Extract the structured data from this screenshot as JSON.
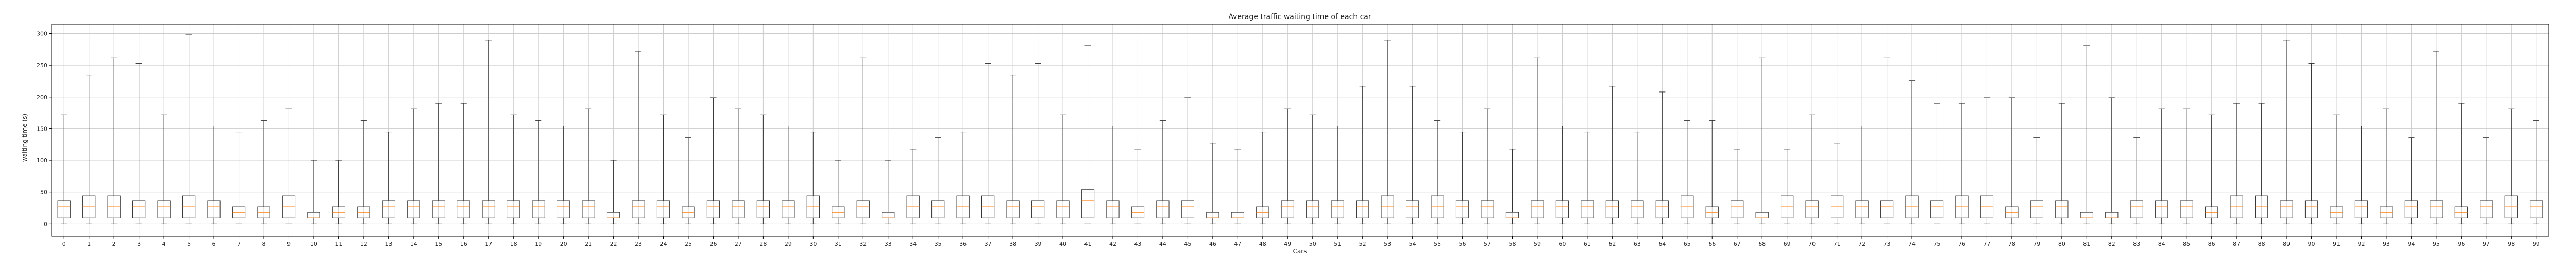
{
  "chart_data": {
    "type": "box",
    "title": "Average traffic waiting time of each car",
    "xlabel": "Cars",
    "ylabel": "waiting time (s)",
    "ylim": [
      -20,
      315
    ],
    "yticks": [
      0,
      50,
      100,
      150,
      200,
      250,
      300
    ],
    "grid": true,
    "colors": {
      "box": "#333333",
      "median": "#ff7f0e",
      "grid": "#cccccc",
      "axis": "#000000"
    },
    "categories": [
      "0",
      "1",
      "2",
      "3",
      "4",
      "5",
      "6",
      "7",
      "8",
      "9",
      "10",
      "11",
      "12",
      "13",
      "14",
      "15",
      "16",
      "17",
      "18",
      "19",
      "20",
      "21",
      "22",
      "23",
      "24",
      "25",
      "26",
      "27",
      "28",
      "29",
      "30",
      "31",
      "32",
      "33",
      "34",
      "35",
      "36",
      "37",
      "38",
      "39",
      "40",
      "41",
      "42",
      "43",
      "44",
      "45",
      "46",
      "47",
      "48",
      "49",
      "50",
      "51",
      "52",
      "53",
      "54",
      "55",
      "56",
      "57",
      "58",
      "59",
      "60",
      "61",
      "62",
      "63",
      "64",
      "65",
      "66",
      "67",
      "68",
      "69",
      "70",
      "71",
      "72",
      "73",
      "74",
      "75",
      "76",
      "77",
      "78",
      "79",
      "80",
      "81",
      "82",
      "83",
      "84",
      "85",
      "86",
      "87",
      "88",
      "89",
      "90",
      "91",
      "92",
      "93",
      "94",
      "95",
      "96",
      "97",
      "98",
      "99"
    ],
    "whisker_high": [
      172,
      235,
      262,
      253,
      172,
      298,
      154,
      145,
      163,
      181,
      100,
      100,
      163,
      145,
      181,
      190,
      190,
      290,
      172,
      163,
      154,
      181,
      100,
      272,
      172,
      136,
      199,
      181,
      172,
      154,
      145,
      100,
      262,
      100,
      118,
      136,
      145,
      253,
      235,
      253,
      172,
      281,
      154,
      118,
      163,
      199,
      127,
      118,
      145,
      181,
      172,
      154,
      217,
      290,
      217,
      163,
      145,
      181,
      118,
      262,
      154,
      145,
      217,
      145,
      208,
      163,
      163,
      118,
      262,
      118,
      172,
      127,
      154,
      262,
      226,
      190,
      190,
      199,
      199,
      136,
      190,
      281,
      199,
      136,
      181,
      181,
      172,
      190,
      190,
      290,
      253,
      172,
      154,
      181,
      136,
      272,
      190,
      136,
      181,
      163
    ],
    "q3": [
      36,
      44,
      44,
      36,
      36,
      44,
      36,
      27,
      27,
      44,
      18,
      27,
      27,
      36,
      36,
      36,
      36,
      36,
      36,
      36,
      36,
      36,
      18,
      36,
      36,
      27,
      36,
      36,
      36,
      36,
      44,
      27,
      36,
      18,
      44,
      36,
      44,
      44,
      36,
      36,
      36,
      54,
      36,
      27,
      36,
      36,
      18,
      18,
      27,
      36,
      36,
      36,
      36,
      44,
      36,
      44,
      36,
      36,
      18,
      36,
      36,
      36,
      36,
      36,
      36,
      44,
      27,
      36,
      18,
      44,
      36,
      44,
      36,
      36,
      44,
      36,
      44,
      44,
      27,
      36,
      36,
      18,
      18,
      36,
      36,
      36,
      27,
      44,
      44,
      36,
      36,
      27,
      36,
      27,
      36,
      36,
      27,
      36,
      44,
      36
    ],
    "median": [
      27,
      27,
      27,
      27,
      27,
      27,
      27,
      18,
      18,
      27,
      9,
      18,
      18,
      27,
      27,
      27,
      27,
      27,
      27,
      27,
      27,
      27,
      9,
      27,
      27,
      18,
      27,
      27,
      27,
      27,
      27,
      18,
      27,
      9,
      27,
      27,
      27,
      27,
      27,
      27,
      27,
      36,
      27,
      18,
      27,
      27,
      9,
      9,
      18,
      27,
      27,
      27,
      27,
      27,
      27,
      27,
      27,
      27,
      9,
      27,
      27,
      27,
      27,
      27,
      27,
      27,
      18,
      27,
      9,
      27,
      27,
      27,
      27,
      27,
      27,
      27,
      27,
      27,
      18,
      27,
      27,
      9,
      9,
      27,
      27,
      27,
      18,
      27,
      27,
      27,
      27,
      18,
      27,
      18,
      27,
      27,
      18,
      27,
      27,
      27
    ],
    "q1": [
      9,
      9,
      9,
      9,
      9,
      9,
      9,
      9,
      9,
      9,
      9,
      9,
      9,
      9,
      9,
      9,
      9,
      9,
      9,
      9,
      9,
      9,
      9,
      9,
      9,
      9,
      9,
      9,
      9,
      9,
      9,
      9,
      9,
      9,
      9,
      9,
      9,
      9,
      9,
      9,
      9,
      9,
      9,
      9,
      9,
      9,
      9,
      9,
      9,
      9,
      9,
      9,
      9,
      9,
      9,
      9,
      9,
      9,
      9,
      9,
      9,
      9,
      9,
      9,
      9,
      9,
      9,
      9,
      9,
      9,
      9,
      9,
      9,
      9,
      9,
      9,
      9,
      9,
      9,
      9,
      9,
      9,
      9,
      9,
      9,
      9,
      9,
      9,
      9,
      9,
      9,
      9,
      9,
      9,
      9,
      9,
      9,
      9,
      9,
      9
    ],
    "whisker_low": [
      0,
      0,
      0,
      0,
      0,
      0,
      0,
      0,
      0,
      0,
      0,
      0,
      0,
      0,
      0,
      0,
      0,
      0,
      0,
      0,
      0,
      0,
      0,
      0,
      0,
      0,
      0,
      0,
      0,
      0,
      0,
      0,
      0,
      0,
      0,
      0,
      0,
      0,
      0,
      0,
      0,
      0,
      0,
      0,
      0,
      0,
      0,
      0,
      0,
      0,
      0,
      0,
      0,
      0,
      0,
      0,
      0,
      0,
      0,
      0,
      0,
      0,
      0,
      0,
      0,
      0,
      0,
      0,
      0,
      0,
      0,
      0,
      0,
      0,
      0,
      0,
      0,
      0,
      0,
      0,
      0,
      0,
      0,
      0,
      0,
      0,
      0,
      0,
      0,
      0,
      0,
      0,
      0,
      0,
      0,
      0,
      0,
      0,
      0,
      0
    ]
  }
}
